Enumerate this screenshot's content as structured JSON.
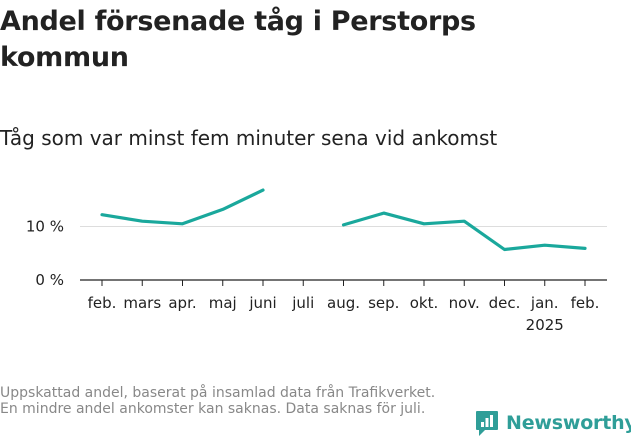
{
  "title": "Andel försenade tåg i Perstorps kommun",
  "subtitle": "Tåg som var minst fem minuter sena vid ankomst",
  "footnote": "Uppskattad andel, baserat på insamlad data från Trafikverket. En mindre andel ankomster kan saknas. Data saknas för juli.",
  "brand": "Newsworthy",
  "colors": {
    "line": "#1aa89c",
    "grid": "#dddddd",
    "axis": "#222222",
    "brand": "#2f9e98"
  },
  "chart_data": {
    "type": "line",
    "title": "Andel försenade tåg i Perstorps kommun",
    "subtitle": "Tåg som var minst fem minuter sena vid ankomst",
    "xlabel": "",
    "ylabel": "",
    "categories": [
      "feb.",
      "mars",
      "apr.",
      "maj",
      "juni",
      "juli",
      "aug.",
      "sep.",
      "okt.",
      "nov.",
      "dec.",
      "jan.",
      "feb."
    ],
    "year_label": {
      "index": 11,
      "text": "2025"
    },
    "series": [
      {
        "name": "Andel försenade",
        "values": [
          12.2,
          11.0,
          10.5,
          13.2,
          16.8,
          null,
          10.3,
          12.5,
          10.5,
          11.0,
          5.7,
          6.5,
          5.9
        ]
      }
    ],
    "yticks": [
      0,
      10
    ],
    "ytick_labels": [
      "0 %",
      "10 %"
    ],
    "ylim": [
      0,
      20
    ],
    "grid": true
  }
}
